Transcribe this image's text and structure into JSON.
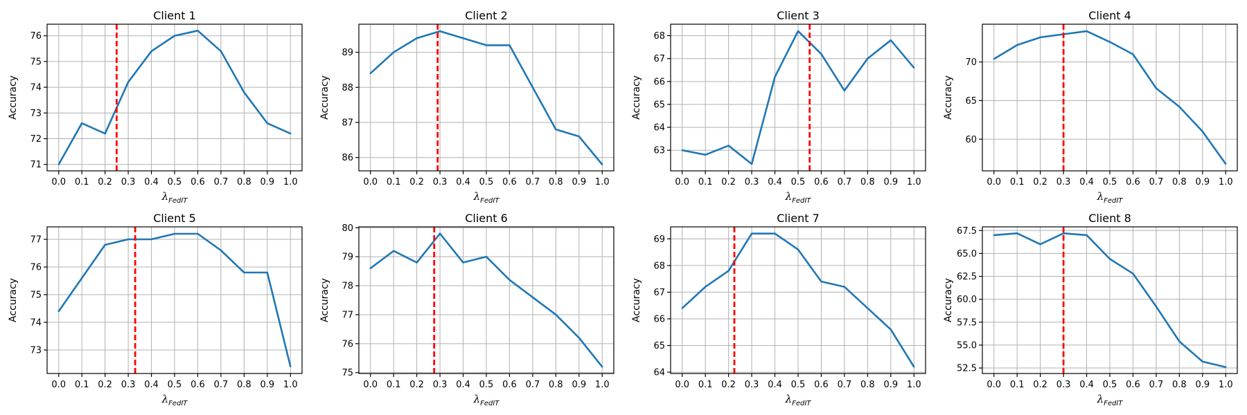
{
  "colors": {
    "series": "#1f77b4",
    "marker": "#ff0000",
    "grid": "#b0b0b0"
  },
  "chart_data": [
    {
      "type": "line",
      "title": "Client 1",
      "xlabel": "λ",
      "xlabel_sub": "FedIT",
      "ylabel": "Accuracy",
      "x": [
        0.0,
        0.1,
        0.2,
        0.3,
        0.4,
        0.5,
        0.6,
        0.7,
        0.8,
        0.9,
        1.0
      ],
      "x_ticks": [
        "0.0",
        "0.1",
        "0.2",
        "0.3",
        "0.4",
        "0.5",
        "0.6",
        "0.7",
        "0.8",
        "0.9",
        "1.0"
      ],
      "values": [
        71.0,
        72.6,
        72.2,
        74.2,
        75.4,
        76.0,
        76.2,
        75.4,
        73.8,
        72.6,
        72.2
      ],
      "vline": 0.25,
      "ylim": [
        70.75,
        76.45
      ],
      "y_ticks": [
        71,
        72,
        73,
        74,
        75,
        76
      ],
      "y_tick_labels": [
        "71",
        "72",
        "73",
        "74",
        "75",
        "76"
      ]
    },
    {
      "type": "line",
      "title": "Client 2",
      "xlabel": "λ",
      "xlabel_sub": "FedIT",
      "ylabel": "Accuracy",
      "x": [
        0.0,
        0.1,
        0.2,
        0.3,
        0.4,
        0.5,
        0.6,
        0.7,
        0.8,
        0.9,
        1.0
      ],
      "x_ticks": [
        "0.0",
        "0.1",
        "0.2",
        "0.3",
        "0.4",
        "0.5",
        "0.6",
        "0.7",
        "0.8",
        "0.9",
        "1.0"
      ],
      "values": [
        88.4,
        89.0,
        89.4,
        89.6,
        89.4,
        89.2,
        89.2,
        88.0,
        86.8,
        86.6,
        85.8
      ],
      "vline": 0.29,
      "ylim": [
        85.62,
        89.8
      ],
      "y_ticks": [
        86,
        87,
        88,
        89
      ],
      "y_tick_labels": [
        "86",
        "87",
        "88",
        "89"
      ]
    },
    {
      "type": "line",
      "title": "Client 3",
      "xlabel": "λ",
      "xlabel_sub": "FedIT",
      "ylabel": "Accuracy",
      "x": [
        0.0,
        0.1,
        0.2,
        0.3,
        0.4,
        0.5,
        0.6,
        0.7,
        0.8,
        0.9,
        1.0
      ],
      "x_ticks": [
        "0.0",
        "0.1",
        "0.2",
        "0.3",
        "0.4",
        "0.5",
        "0.6",
        "0.7",
        "0.8",
        "0.9",
        "1.0"
      ],
      "values": [
        63.0,
        62.8,
        63.2,
        62.4,
        66.2,
        68.2,
        67.2,
        65.6,
        67.0,
        67.8,
        66.6
      ],
      "vline": 0.55,
      "ylim": [
        62.1,
        68.5
      ],
      "y_ticks": [
        63,
        64,
        65,
        66,
        67,
        68
      ],
      "y_tick_labels": [
        "63",
        "64",
        "65",
        "66",
        "67",
        "68"
      ]
    },
    {
      "type": "line",
      "title": "Client 4",
      "xlabel": "λ",
      "xlabel_sub": "FedIT",
      "ylabel": "Accuracy",
      "x": [
        0.0,
        0.1,
        0.2,
        0.3,
        0.4,
        0.5,
        0.6,
        0.7,
        0.8,
        0.9,
        1.0
      ],
      "x_ticks": [
        "0.0",
        "0.1",
        "0.2",
        "0.3",
        "0.4",
        "0.5",
        "0.6",
        "0.7",
        "0.8",
        "0.9",
        "1.0"
      ],
      "values": [
        70.4,
        72.2,
        73.2,
        73.6,
        74.0,
        72.6,
        71.0,
        66.6,
        64.2,
        61.0,
        56.8
      ],
      "vline": 0.3,
      "ylim": [
        55.9,
        74.9
      ],
      "y_ticks": [
        60,
        65,
        70
      ],
      "y_tick_labels": [
        "60",
        "65",
        "70"
      ]
    },
    {
      "type": "line",
      "title": "Client 5",
      "xlabel": "λ",
      "xlabel_sub": "FedIT",
      "ylabel": "Accuracy",
      "x": [
        0.0,
        0.1,
        0.2,
        0.3,
        0.4,
        0.5,
        0.6,
        0.7,
        0.8,
        0.9,
        1.0
      ],
      "x_ticks": [
        "0.0",
        "0.1",
        "0.2",
        "0.3",
        "0.4",
        "0.5",
        "0.6",
        "0.7",
        "0.8",
        "0.9",
        "1.0"
      ],
      "values": [
        74.4,
        75.6,
        76.8,
        77.0,
        77.0,
        77.2,
        77.2,
        76.6,
        75.8,
        75.8,
        72.4
      ],
      "vline": 0.33,
      "ylim": [
        72.15,
        77.45
      ],
      "y_ticks": [
        73,
        74,
        75,
        76,
        77
      ],
      "y_tick_labels": [
        "73",
        "74",
        "75",
        "76",
        "77"
      ]
    },
    {
      "type": "line",
      "title": "Client 6",
      "xlabel": "λ",
      "xlabel_sub": "FedIT",
      "ylabel": "Accuracy",
      "x": [
        0.0,
        0.1,
        0.2,
        0.3,
        0.4,
        0.5,
        0.6,
        0.7,
        0.8,
        0.9,
        1.0
      ],
      "x_ticks": [
        "0.0",
        "0.1",
        "0.2",
        "0.3",
        "0.4",
        "0.5",
        "0.6",
        "0.7",
        "0.8",
        "0.9",
        "1.0"
      ],
      "values": [
        78.6,
        79.2,
        78.8,
        79.8,
        78.8,
        79.0,
        78.2,
        77.6,
        77.0,
        76.2,
        75.2
      ],
      "vline": 0.275,
      "ylim": [
        74.97,
        80.03
      ],
      "y_ticks": [
        75,
        76,
        77,
        78,
        79,
        80
      ],
      "y_tick_labels": [
        "75",
        "76",
        "77",
        "78",
        "79",
        "80"
      ]
    },
    {
      "type": "line",
      "title": "Client 7",
      "xlabel": "λ",
      "xlabel_sub": "FedIT",
      "ylabel": "Accuracy",
      "x": [
        0.0,
        0.1,
        0.2,
        0.3,
        0.4,
        0.5,
        0.6,
        0.7,
        0.8,
        0.9,
        1.0
      ],
      "x_ticks": [
        "0.0",
        "0.1",
        "0.2",
        "0.3",
        "0.4",
        "0.5",
        "0.6",
        "0.7",
        "0.8",
        "0.9",
        "1.0"
      ],
      "values": [
        66.4,
        67.2,
        67.8,
        69.2,
        69.2,
        68.6,
        67.4,
        67.2,
        66.4,
        65.6,
        64.2
      ],
      "vline": 0.225,
      "ylim": [
        63.95,
        69.45
      ],
      "y_ticks": [
        64,
        65,
        66,
        67,
        68,
        69
      ],
      "y_tick_labels": [
        "64",
        "65",
        "66",
        "67",
        "68",
        "69"
      ]
    },
    {
      "type": "line",
      "title": "Client 8",
      "xlabel": "λ",
      "xlabel_sub": "FedIT",
      "ylabel": "Accuracy",
      "x": [
        0.0,
        0.1,
        0.2,
        0.3,
        0.4,
        0.5,
        0.6,
        0.7,
        0.8,
        0.9,
        1.0
      ],
      "x_ticks": [
        "0.0",
        "0.1",
        "0.2",
        "0.3",
        "0.4",
        "0.5",
        "0.6",
        "0.7",
        "0.8",
        "0.9",
        "1.0"
      ],
      "values": [
        67.0,
        67.2,
        66.0,
        67.2,
        67.0,
        64.4,
        62.8,
        59.2,
        55.4,
        53.2,
        52.6
      ],
      "vline": 0.3,
      "ylim": [
        51.9,
        67.9
      ],
      "y_ticks": [
        52.5,
        55.0,
        57.5,
        60.0,
        62.5,
        65.0,
        67.5
      ],
      "y_tick_labels": [
        "52.5",
        "55.0",
        "57.5",
        "60.0",
        "62.5",
        "65.0",
        "67.5"
      ]
    }
  ]
}
